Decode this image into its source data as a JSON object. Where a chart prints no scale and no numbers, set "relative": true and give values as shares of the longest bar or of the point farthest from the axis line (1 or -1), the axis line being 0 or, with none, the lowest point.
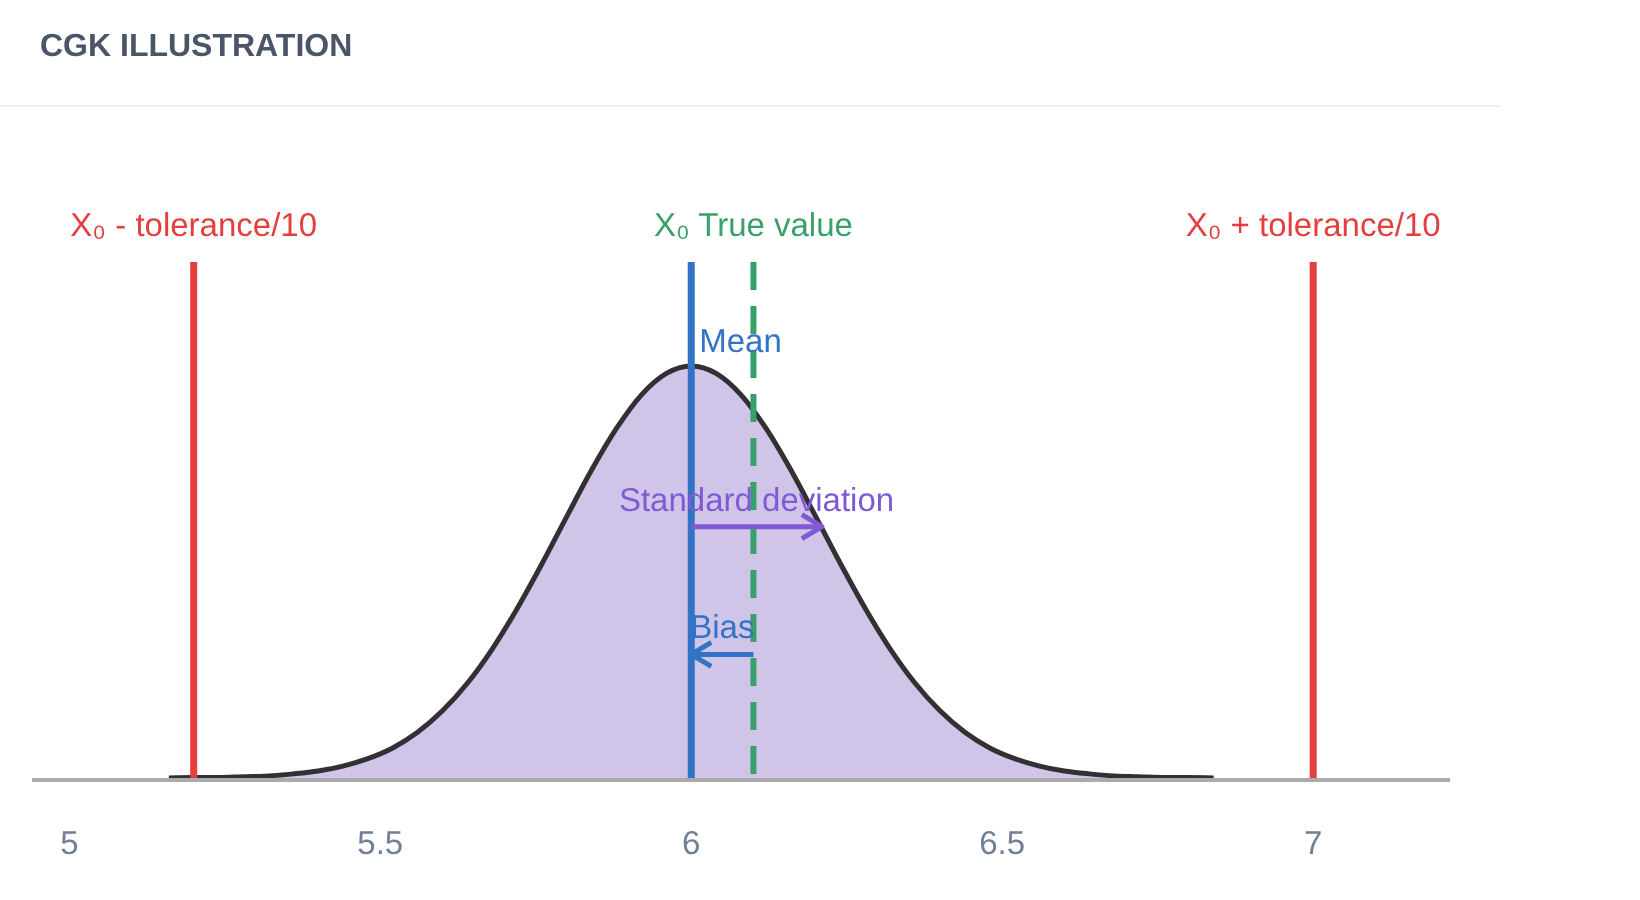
{
  "chart_data": {
    "type": "area",
    "title": "CGK ILLUSTRATION",
    "x": [
      5.16,
      5.2,
      5.24,
      5.28,
      5.32,
      5.36,
      5.4,
      5.44,
      5.48,
      5.52,
      5.56,
      5.6,
      5.64,
      5.68,
      5.72,
      5.76,
      5.8,
      5.84,
      5.88,
      5.92,
      5.96,
      6,
      6.04,
      6.08,
      6.12,
      6.16,
      6.2,
      6.24,
      6.28,
      6.32,
      6.36,
      6.4,
      6.44,
      6.48,
      6.52,
      6.56,
      6.6,
      6.64,
      6.68,
      6.72,
      6.76,
      6.8,
      6.84
    ],
    "values": [
      0,
      0.001,
      0.001,
      0.003,
      0.005,
      0.01,
      0.017,
      0.029,
      0.047,
      0.073,
      0.111,
      0.163,
      0.23,
      0.313,
      0.411,
      0.52,
      0.635,
      0.748,
      0.849,
      0.93,
      0.982,
      1,
      0.982,
      0.93,
      0.849,
      0.748,
      0.635,
      0.52,
      0.411,
      0.313,
      0.23,
      0.163,
      0.111,
      0.073,
      0.047,
      0.029,
      0.017,
      0.01,
      0.005,
      0.003,
      0.001,
      0.001,
      0
    ],
    "color": "#d1c4e9",
    "relative": true,
    "xlim": [
      4.94,
      7.22
    ],
    "xticks": [
      5,
      5.5,
      6,
      6.5,
      7
    ],
    "ref_lines": [
      {
        "axis": "x",
        "value": 5.2,
        "label": "X₀ - tolerance/10",
        "color": "#e53e3e"
      },
      {
        "axis": "x",
        "value": 6.1,
        "label": "X₀ True value",
        "color": "#38a169",
        "line_style": "dashed"
      },
      {
        "axis": "x",
        "value": 6,
        "label": "Mean",
        "color": "#3173c4"
      },
      {
        "axis": "x",
        "value": 7,
        "label": "X₀ + tolerance/10",
        "color": "#e53e3e"
      }
    ],
    "annotations": [
      {
        "text": "Standard deviation",
        "x": 6.21,
        "y": 0.61
      },
      {
        "text": "Bias",
        "x": 6,
        "y": 0.3
      }
    ]
  }
}
